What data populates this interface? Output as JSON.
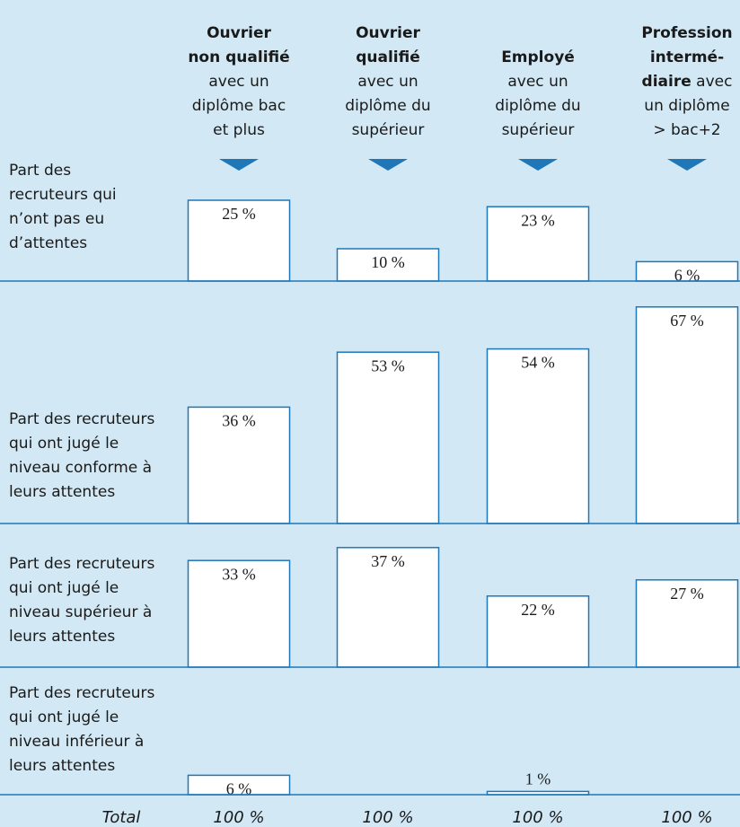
{
  "chart_data": {
    "type": "bar",
    "color": "#1f77b8",
    "columns": [
      {
        "lines": [
          [
            {
              "text": "Ouvrier",
              "bold": true
            }
          ],
          [
            {
              "text": "non qualifié",
              "bold": true
            }
          ],
          [
            {
              "text": "avec un",
              "bold": false
            }
          ],
          [
            {
              "text": "diplôme bac",
              "bold": false
            }
          ],
          [
            {
              "text": "et plus",
              "bold": false
            }
          ]
        ]
      },
      {
        "lines": [
          [
            {
              "text": "Ouvrier",
              "bold": true
            }
          ],
          [
            {
              "text": "qualifié",
              "bold": true
            }
          ],
          [
            {
              "text": "avec un",
              "bold": false
            }
          ],
          [
            {
              "text": "diplôme du",
              "bold": false
            }
          ],
          [
            {
              "text": "supérieur",
              "bold": false
            }
          ]
        ]
      },
      {
        "lines": [
          [
            {
              "text": "Employé",
              "bold": true
            }
          ],
          [
            {
              "text": "avec un",
              "bold": false
            }
          ],
          [
            {
              "text": "diplôme du",
              "bold": false
            }
          ],
          [
            {
              "text": "supérieur",
              "bold": false
            }
          ]
        ]
      },
      {
        "lines": [
          [
            {
              "text": "Profession",
              "bold": true
            }
          ],
          [
            {
              "text": "intermé-",
              "bold": true
            }
          ],
          [
            {
              "text": "diaire",
              "bold": true
            },
            {
              "text": " avec",
              "bold": false
            }
          ],
          [
            {
              "text": "un diplôme",
              "bold": false
            }
          ],
          [
            {
              "text": "> bac+2",
              "bold": false
            }
          ]
        ]
      }
    ],
    "rows": [
      {
        "label": [
          "Part des",
          "recruteurs qui",
          "n’ont pas eu",
          "d’attentes"
        ],
        "values": [
          25,
          10,
          23,
          6
        ],
        "value_labels": [
          "25 %",
          "10 %",
          "23 %",
          "6 %"
        ]
      },
      {
        "label": [
          "Part des recruteurs",
          "qui ont jugé le",
          "niveau conforme à",
          "leurs attentes"
        ],
        "values": [
          36,
          53,
          54,
          67
        ],
        "value_labels": [
          "36 %",
          "53 %",
          "54 %",
          "67 %"
        ]
      },
      {
        "label": [
          "Part des recruteurs",
          "qui ont jugé le",
          "niveau supérieur à",
          "leurs attentes"
        ],
        "values": [
          33,
          37,
          22,
          27
        ],
        "value_labels": [
          "33 %",
          "37 %",
          "22 %",
          "27 %"
        ]
      },
      {
        "label": [
          "Part des recruteurs",
          "qui ont jugé le",
          "niveau inférieur à",
          "leurs attentes"
        ],
        "values": [
          6,
          0,
          1,
          0
        ],
        "value_labels": [
          "6 %",
          null,
          "1 %",
          null
        ]
      }
    ],
    "total": {
      "label": "Total",
      "values": [
        100,
        100,
        100,
        100
      ],
      "value_labels": [
        "100 %",
        "100 %",
        "100 %",
        "100 %"
      ]
    }
  }
}
